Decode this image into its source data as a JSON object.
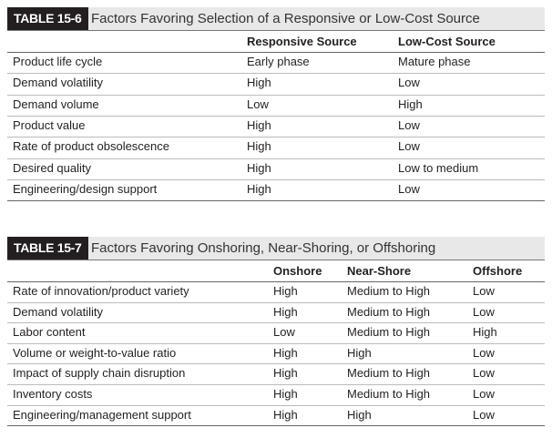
{
  "tables": [
    {
      "label": "TABLE 15-6",
      "title": "Factors Favoring Selection of a Responsive or Low-Cost Source",
      "columns": [
        "Responsive Source",
        "Low-Cost Source"
      ],
      "rows": [
        [
          "Product life cycle",
          "Early phase",
          "Mature phase"
        ],
        [
          "Demand volatility",
          "High",
          "Low"
        ],
        [
          "Demand volume",
          "Low",
          "High"
        ],
        [
          "Product value",
          "High",
          "Low"
        ],
        [
          "Rate of product obsolescence",
          "High",
          "Low"
        ],
        [
          "Desired quality",
          "High",
          "Low to medium"
        ],
        [
          "Engineering/design support",
          "High",
          "Low"
        ]
      ]
    },
    {
      "label": "TABLE 15-7",
      "title": "Factors Favoring Onshoring, Near-Shoring, or Offshoring",
      "columns": [
        "Onshore",
        "Near-Shore",
        "Offshore"
      ],
      "rows": [
        [
          "Rate of innovation/product variety",
          "High",
          "Medium to High",
          "Low"
        ],
        [
          "Demand volatility",
          "High",
          "Medium to High",
          "Low"
        ],
        [
          "Labor content",
          "Low",
          "Medium to High",
          "High"
        ],
        [
          "Volume or weight-to-value ratio",
          "High",
          "High",
          "Low"
        ],
        [
          "Impact of supply chain disruption",
          "High",
          "Medium to High",
          "Low"
        ],
        [
          "Inventory costs",
          "High",
          "Medium to High",
          "Low"
        ],
        [
          "Engineering/management support",
          "High",
          "High",
          "Low"
        ]
      ]
    }
  ]
}
